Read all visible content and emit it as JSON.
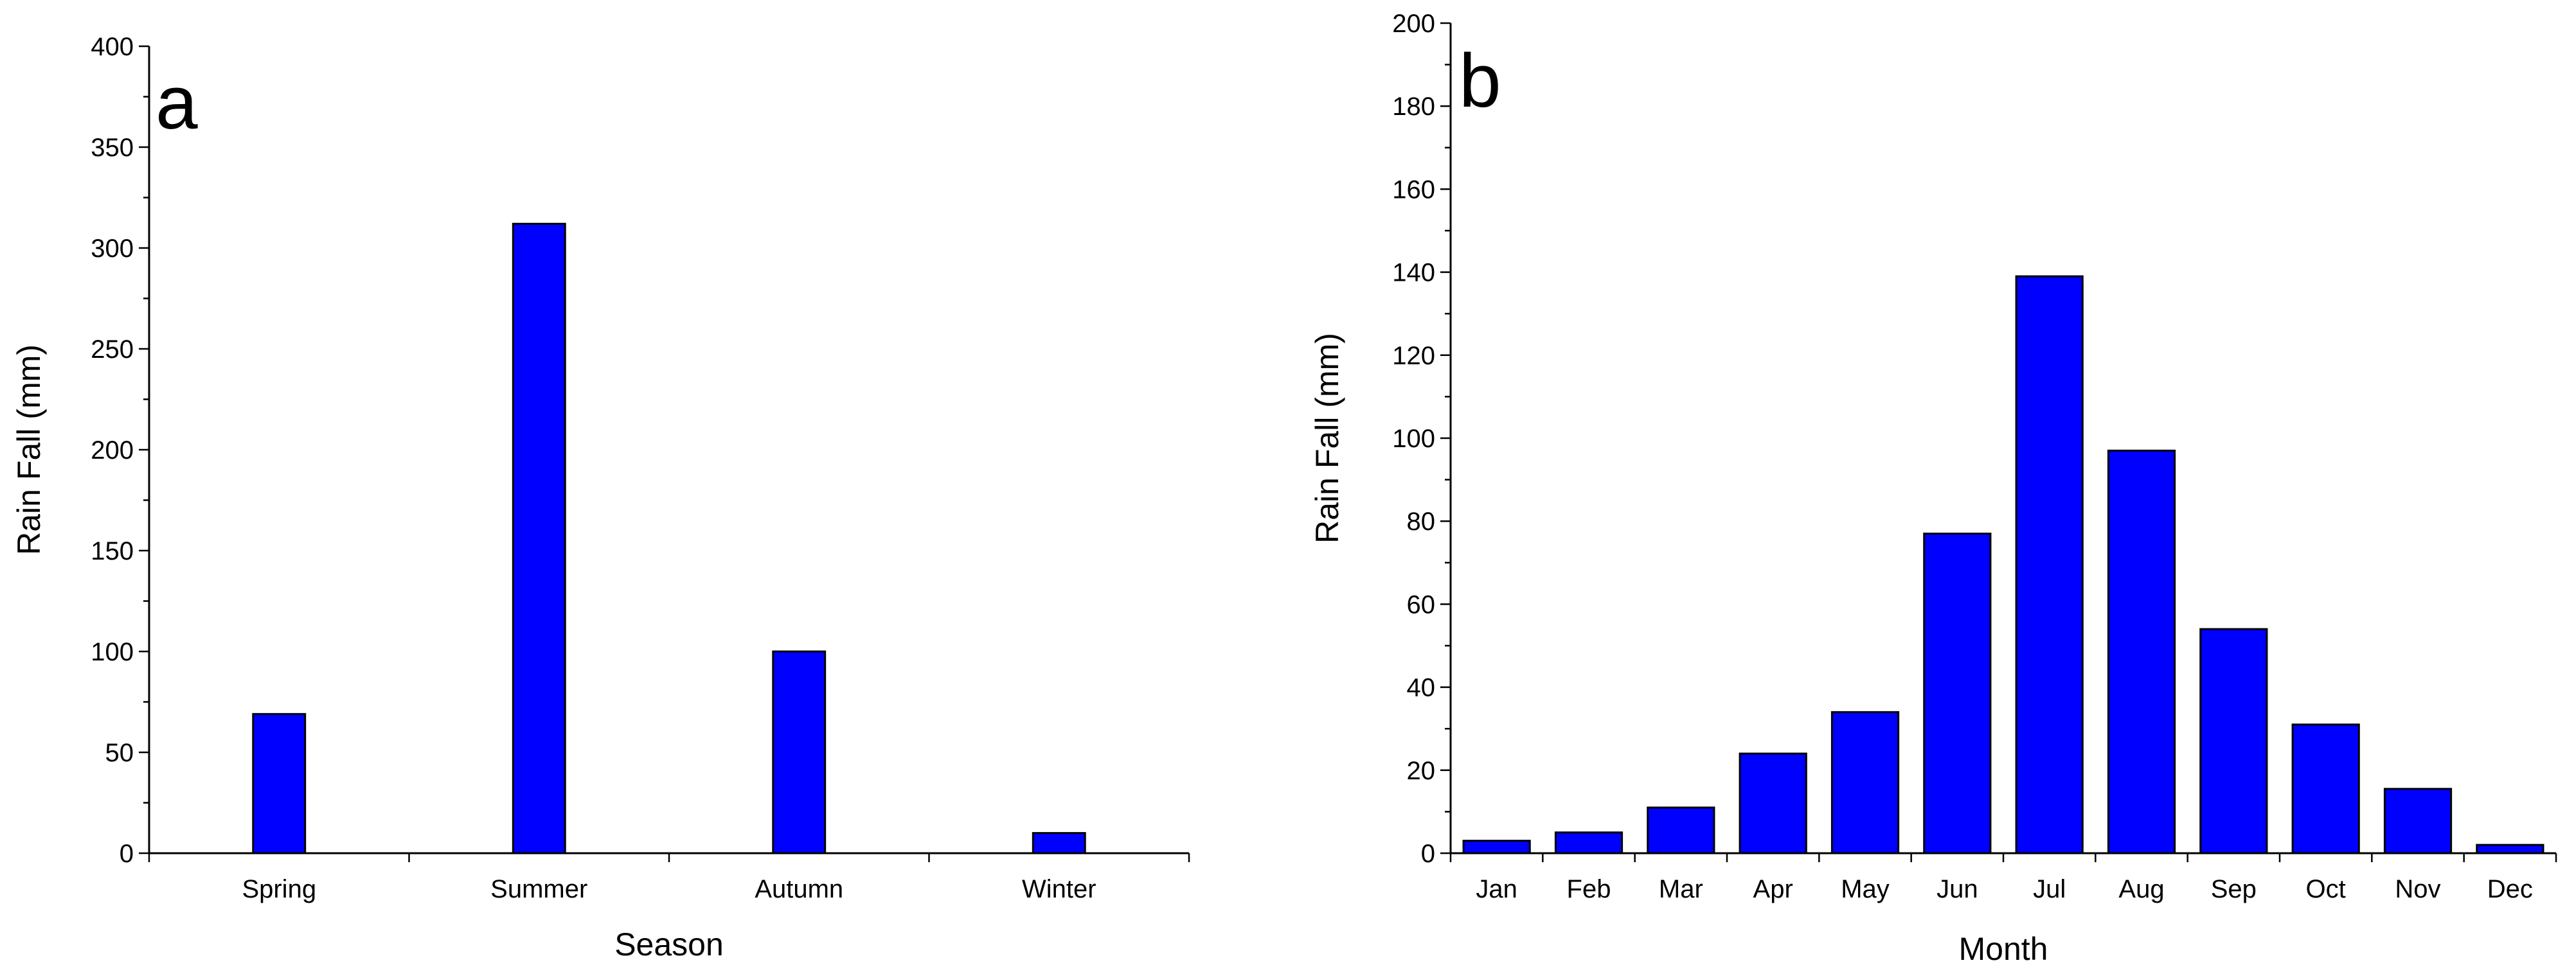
{
  "chart_data": [
    {
      "type": "bar",
      "panel_label": "a",
      "categories": [
        "Spring",
        "Summer",
        "Autumn",
        "Winter"
      ],
      "values": [
        69,
        312,
        100,
        10
      ],
      "xlabel": "Season",
      "ylabel": "Rain Fall (mm)",
      "ylim": [
        0,
        400
      ],
      "yticks": [
        "0",
        "50",
        "100",
        "150",
        "200",
        "250",
        "300",
        "350",
        "400"
      ],
      "bar_color": "#0000ff",
      "grid": false
    },
    {
      "type": "bar",
      "panel_label": "b",
      "categories": [
        "Jan",
        "Feb",
        "Mar",
        "Apr",
        "May",
        "Jun",
        "Jul",
        "Aug",
        "Sep",
        "Oct",
        "Nov",
        "Dec"
      ],
      "values": [
        3,
        5,
        11,
        24,
        34,
        77,
        139,
        97,
        54,
        31,
        15.5,
        2
      ],
      "xlabel": "Month",
      "ylabel": "Rain Fall (mm)",
      "ylim": [
        0,
        200
      ],
      "yticks": [
        "0",
        "20",
        "40",
        "60",
        "80",
        "100",
        "120",
        "140",
        "160",
        "180",
        "200"
      ],
      "bar_color": "#0000ff",
      "grid": false
    }
  ]
}
